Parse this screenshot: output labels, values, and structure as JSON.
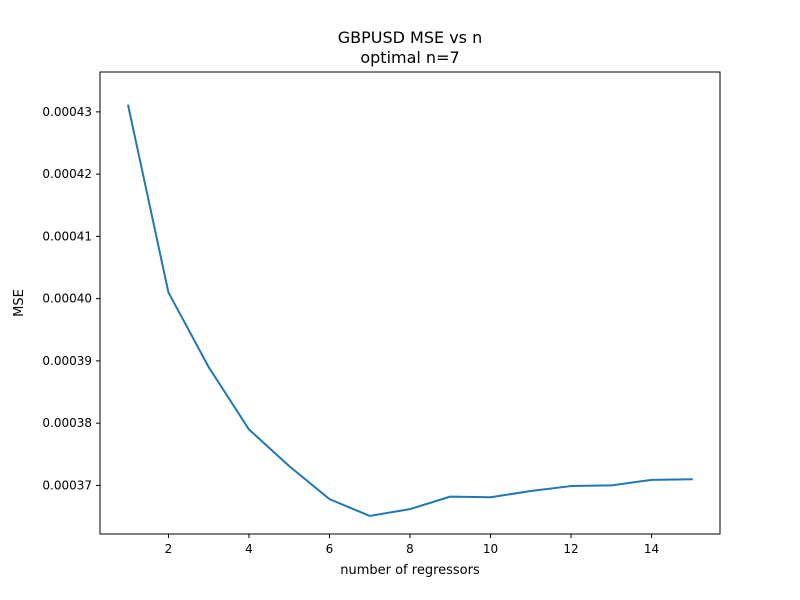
{
  "chart_data": {
    "type": "line",
    "title": "GBPUSD MSE vs n",
    "subtitle": "optimal n=7",
    "xlabel": "number of regressors",
    "ylabel": "MSE",
    "xlim": [
      0.3,
      15.7
    ],
    "ylim": [
      0.0003622,
      0.0004364
    ],
    "x_ticks": [
      2,
      4,
      6,
      8,
      10,
      12,
      14
    ],
    "x_tick_labels": [
      "2",
      "4",
      "6",
      "8",
      "10",
      "12",
      "14"
    ],
    "y_ticks": [
      0.00037,
      0.00038,
      0.00039,
      0.0004,
      0.00041,
      0.00042,
      0.00043
    ],
    "y_tick_labels": [
      "0.00037",
      "0.00038",
      "0.00039",
      "0.00040",
      "0.00041",
      "0.00042",
      "0.00043"
    ],
    "grid": false,
    "series": [
      {
        "color": "#1f77b4",
        "x": [
          1,
          2,
          3,
          4,
          5,
          6,
          7,
          8,
          9,
          10,
          11,
          12,
          13,
          14,
          15
        ],
        "values": [
          0.000431,
          0.000401,
          0.000389,
          0.000379,
          0.0003731,
          0.0003678,
          0.0003651,
          0.0003662,
          0.0003682,
          0.0003681,
          0.0003691,
          0.0003699,
          0.00037,
          0.0003709,
          0.000371
        ]
      }
    ]
  }
}
